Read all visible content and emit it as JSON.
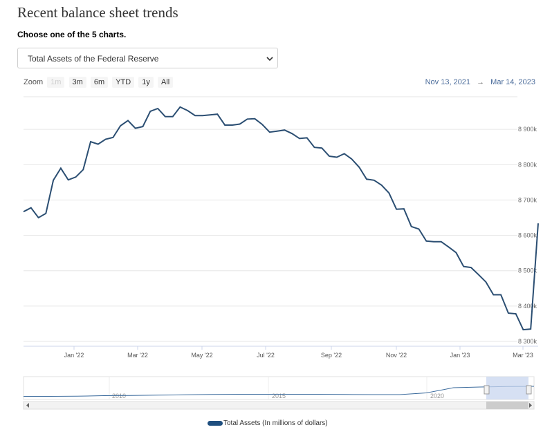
{
  "page": {
    "title": "Recent balance sheet trends",
    "choose_label": "Choose one of the 5 charts."
  },
  "selector": {
    "selected": "Total Assets of the Federal Reserve"
  },
  "toolbar": {
    "zoom_label": "Zoom",
    "buttons": [
      {
        "label": "1m",
        "enabled": false
      },
      {
        "label": "3m",
        "enabled": true
      },
      {
        "label": "6m",
        "enabled": true
      },
      {
        "label": "YTD",
        "enabled": true
      },
      {
        "label": "1y",
        "enabled": true
      },
      {
        "label": "All",
        "enabled": true
      }
    ],
    "range_from": "Nov 13, 2021",
    "range_arrow": "→",
    "range_to": "Mar 14, 2023"
  },
  "colors": {
    "line": "#2b4e72",
    "grid": "#e6e6e6",
    "navigator_mask": "#c8d6ef"
  },
  "chart_data": {
    "type": "line",
    "title": "Total Assets of the Federal Reserve",
    "series": [
      {
        "name": "Total Assets (In millions of dollars)",
        "x_index_range": [
          0,
          69
        ],
        "values": [
          8667,
          8678,
          8650,
          8662,
          8756,
          8790,
          8757,
          8765,
          8786,
          8865,
          8858,
          8872,
          8877,
          8910,
          8925,
          8903,
          8908,
          8951,
          8959,
          8936,
          8936,
          8963,
          8953,
          8939,
          8939,
          8941,
          8943,
          8912,
          8912,
          8915,
          8929,
          8930,
          8914,
          8892,
          8895,
          8898,
          8888,
          8874,
          8876,
          8849,
          8847,
          8824,
          8821,
          8831,
          8816,
          8793,
          8759,
          8756,
          8742,
          8720,
          8674,
          8675,
          8625,
          8618,
          8584,
          8582,
          8582,
          8567,
          8551,
          8512,
          8509,
          8489,
          8468,
          8432,
          8432,
          8380,
          8378,
          8333,
          8335,
          8634
        ]
      }
    ],
    "xtick_labels": [
      "Jan '22",
      "Mar '22",
      "May '22",
      "Jul '22",
      "Sep '22",
      "Nov '22",
      "Jan '23",
      "Mar '23"
    ],
    "ytick_labels": [
      "8 300k",
      "8 400k",
      "8 500k",
      "8 600k",
      "8 700k",
      "8 800k",
      "8 900k"
    ],
    "ylim": [
      8300,
      9000
    ],
    "navigator": {
      "tick_labels": [
        "2010",
        "2015",
        "2020"
      ],
      "values": [
        0.1,
        0.1,
        0.11,
        0.14,
        0.15,
        0.17,
        0.19,
        0.21,
        0.22,
        0.22,
        0.22,
        0.22,
        0.21,
        0.2,
        0.2,
        0.3,
        0.6,
        0.64,
        0.67,
        0.68
      ]
    },
    "legend": "Total Assets (In millions of dollars)"
  }
}
